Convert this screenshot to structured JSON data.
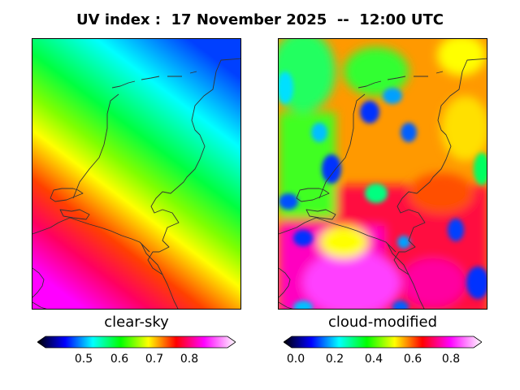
{
  "title": "UV index :  17 November 2025  --  12:00 UTC",
  "panels": [
    {
      "label": "clear-sky",
      "colorbar_ticks": [
        "0.5",
        "0.6",
        "0.7",
        "0.8"
      ]
    },
    {
      "label": "cloud-modified",
      "colorbar_ticks": [
        "0.0",
        "0.2",
        "0.4",
        "0.6",
        "0.8"
      ]
    }
  ],
  "colors": {
    "scale": [
      "#000000",
      "#0000ff",
      "#00ffff",
      "#00ff00",
      "#ffff00",
      "#ff0000",
      "#ff00ff",
      "#ffffff"
    ],
    "border_line": "#333333"
  }
}
